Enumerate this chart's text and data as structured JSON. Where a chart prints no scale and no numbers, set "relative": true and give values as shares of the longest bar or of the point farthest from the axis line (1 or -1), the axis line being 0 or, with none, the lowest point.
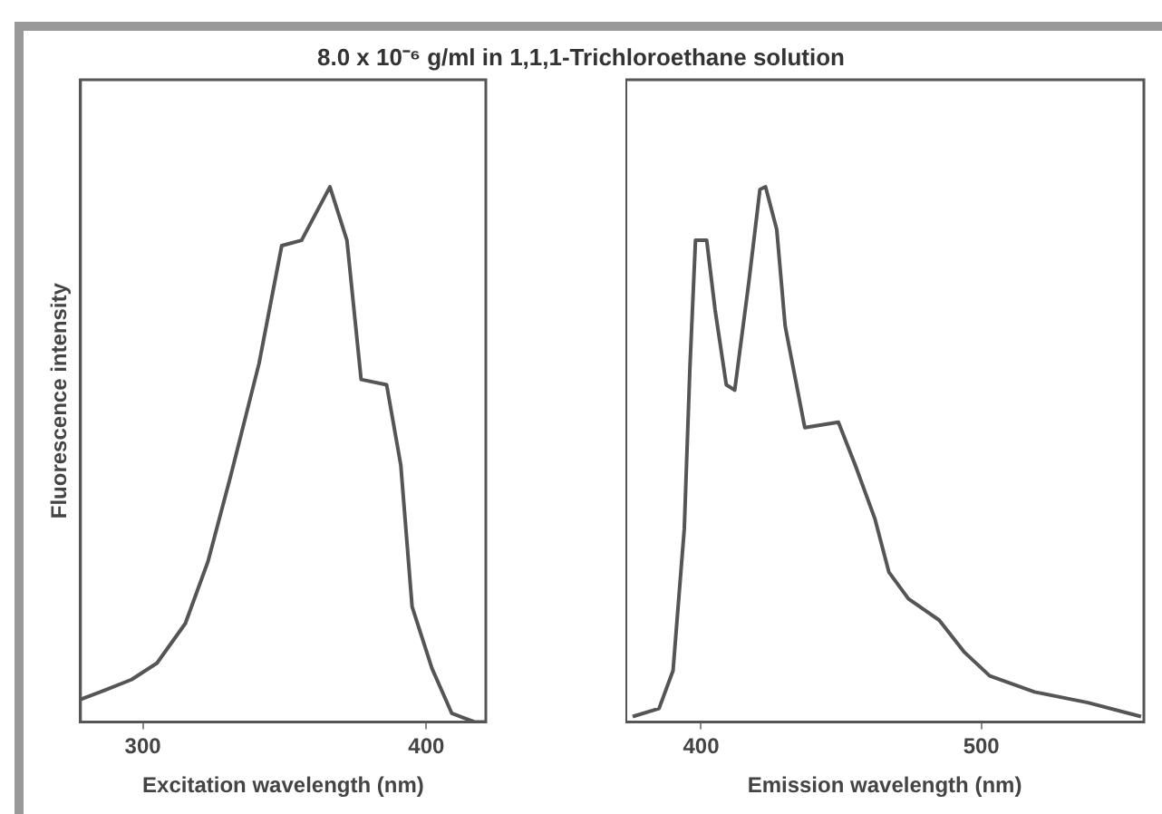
{
  "chart_data": [
    {
      "type": "line",
      "title": "8.0 x 10⁻⁶ g/ml in 1,1,1-Trichloroethane solution",
      "xlabel": "Excitation wavelength (nm)",
      "ylabel": "Fluorescence intensity",
      "relative": true,
      "tick_labels": "x",
      "xlim": [
        278,
        421
      ],
      "xticks": [
        300,
        400
      ],
      "x": [
        278,
        286,
        296,
        305,
        315,
        323,
        331,
        341,
        349,
        356,
        366,
        372,
        377,
        386,
        391,
        395,
        402,
        409,
        417,
        421
      ],
      "series": [
        {
          "color": "#555555",
          "values": [
            0.042,
            0.058,
            0.079,
            0.11,
            0.184,
            0.3,
            0.46,
            0.67,
            0.89,
            0.9,
            1.0,
            0.9,
            0.64,
            0.63,
            0.48,
            0.215,
            0.1,
            0.016,
            0,
            0
          ]
        }
      ]
    },
    {
      "type": "line",
      "xlabel": "Emission wavelength (nm)",
      "relative": true,
      "tick_labels": "x",
      "xlim": [
        373,
        558
      ],
      "xticks": [
        400,
        500
      ],
      "x": [
        375.6,
        385,
        390,
        394,
        396,
        398,
        402,
        405,
        409,
        412,
        417,
        421,
        423,
        427,
        430,
        437,
        449,
        455,
        462,
        467,
        474,
        485,
        494,
        503,
        519,
        538,
        557
      ],
      "series": [
        {
          "color": "#555555",
          "values": [
            0.01,
            0.025,
            0.096,
            0.36,
            0.66,
            0.9,
            0.9,
            0.77,
            0.63,
            0.62,
            0.82,
            0.995,
            1.0,
            0.92,
            0.74,
            0.55,
            0.56,
            0.48,
            0.38,
            0.28,
            0.23,
            0.19,
            0.13,
            0.086,
            0.056,
            0.036,
            0.01
          ]
        }
      ]
    }
  ]
}
